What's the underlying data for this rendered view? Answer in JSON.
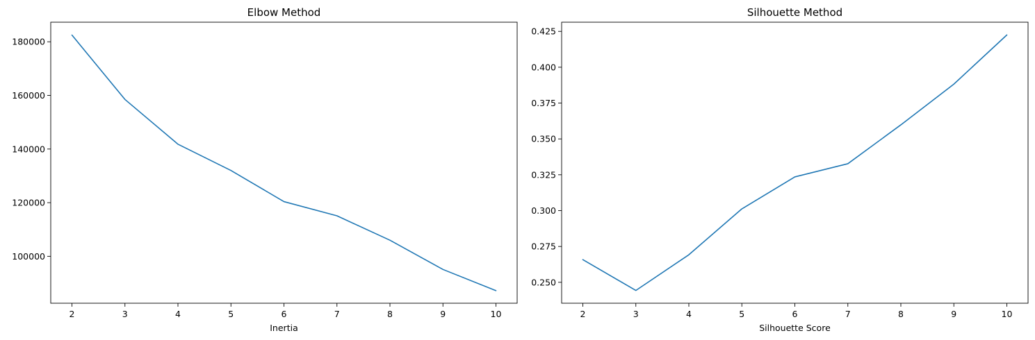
{
  "chart_data": [
    {
      "type": "line",
      "title": "Elbow Method",
      "xlabel": "Inertia",
      "ylabel": "",
      "x": [
        2,
        3,
        4,
        5,
        6,
        7,
        8,
        9,
        10
      ],
      "series": [
        {
          "values": [
            182500,
            158500,
            141800,
            132000,
            120400,
            115100,
            106000,
            95100,
            87200
          ],
          "color": "#1f77b4"
        }
      ],
      "xlim": [
        1.6,
        10.4
      ],
      "ylim": [
        82500,
        187300
      ],
      "xticks": [
        2,
        3,
        4,
        5,
        6,
        7,
        8,
        9,
        10
      ],
      "yticks": [
        100000,
        120000,
        140000,
        160000,
        180000
      ],
      "grid": false,
      "legend": "none"
    },
    {
      "type": "line",
      "title": "Silhouette Method",
      "xlabel": "Silhouette Score",
      "ylabel": "",
      "x": [
        2,
        3,
        4,
        5,
        6,
        7,
        8,
        9,
        10
      ],
      "series": [
        {
          "values": [
            0.2658,
            0.2443,
            0.2692,
            0.3012,
            0.3235,
            0.3327,
            0.3598,
            0.3882,
            0.4225
          ],
          "color": "#1f77b4"
        }
      ],
      "xlim": [
        1.6,
        10.4
      ],
      "ylim": [
        0.2354,
        0.4314
      ],
      "xticks": [
        2,
        3,
        4,
        5,
        6,
        7,
        8,
        9,
        10
      ],
      "yticks": [
        0.25,
        0.275,
        0.3,
        0.325,
        0.35,
        0.375,
        0.4,
        0.425
      ],
      "yticks_decimals": 3,
      "grid": false,
      "legend": "none"
    }
  ]
}
